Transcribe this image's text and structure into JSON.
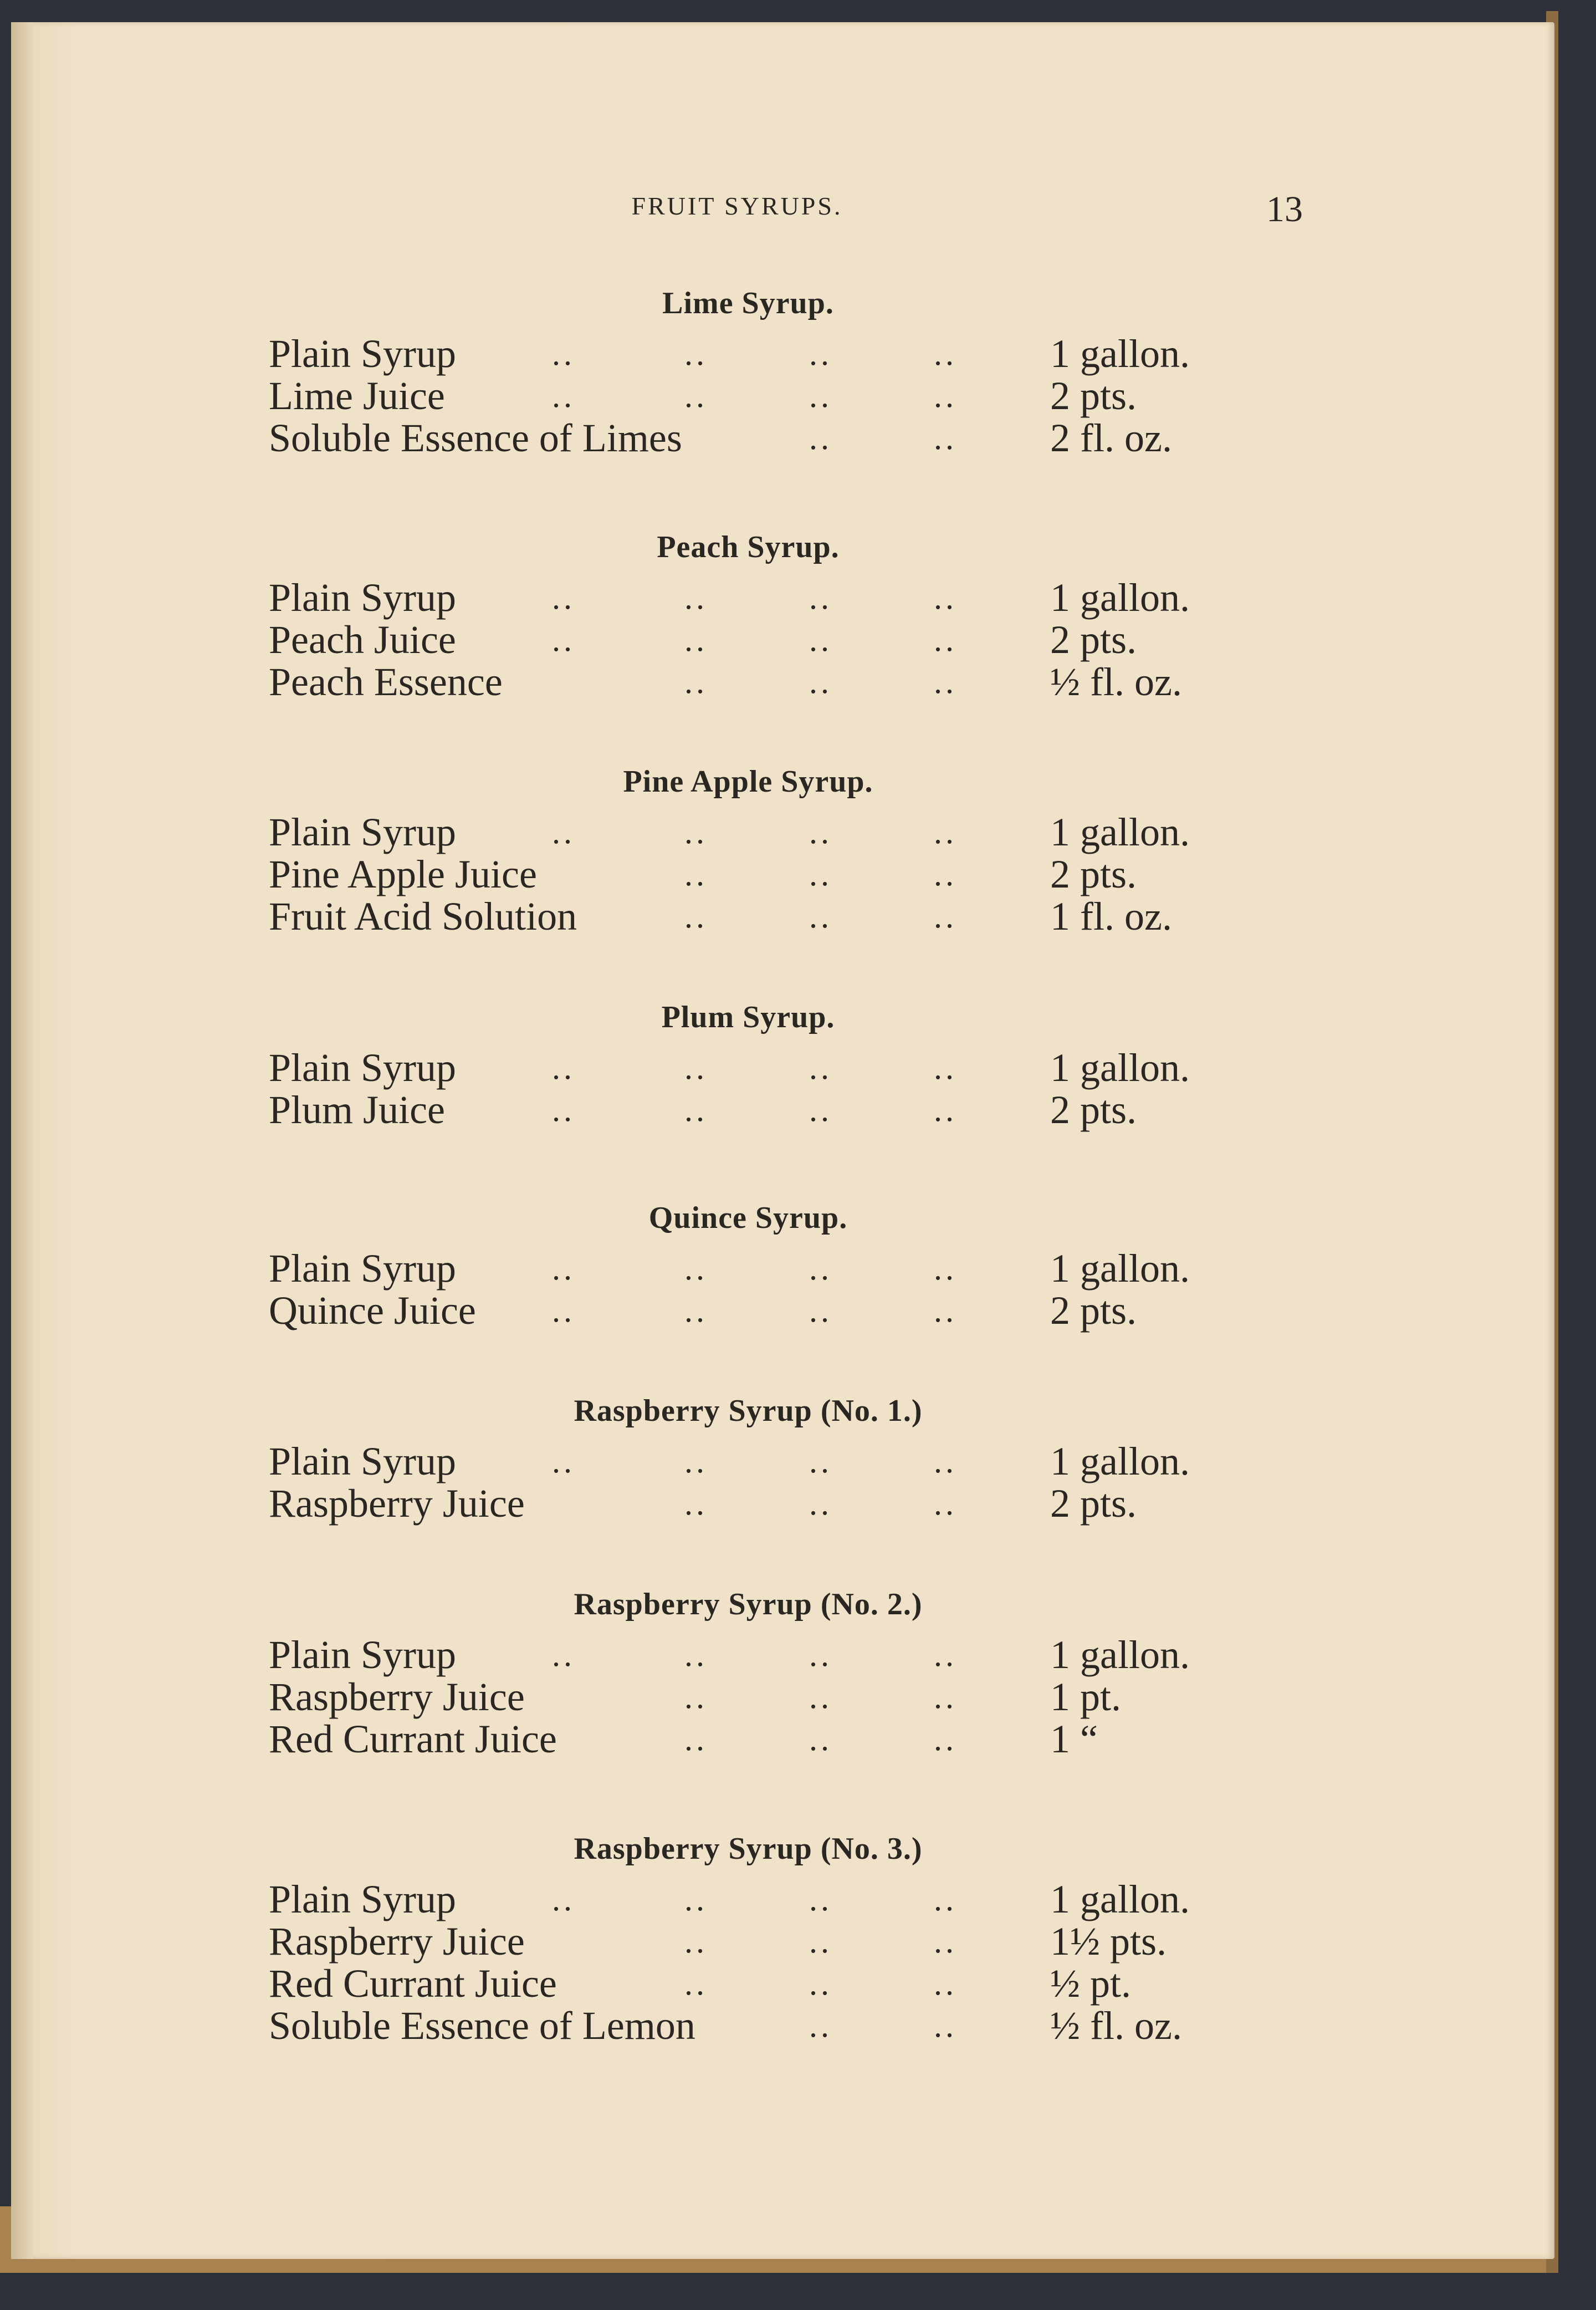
{
  "running_head": "FRUIT SYRUPS.",
  "page_number": "13",
  "leader": "..",
  "sections": [
    {
      "title": "Lime Syrup.",
      "rows": [
        {
          "item": "Plain Syrup",
          "leaders": 4,
          "amount": "1 gallon."
        },
        {
          "item": "Lime Juice",
          "leaders": 4,
          "amount": "2 pts."
        },
        {
          "item": "Soluble Essence of Limes",
          "leaders": 2,
          "amount": "2 fl. oz."
        }
      ]
    },
    {
      "title": "Peach Syrup.",
      "rows": [
        {
          "item": "Plain Syrup",
          "leaders": 4,
          "amount": "1 gallon."
        },
        {
          "item": "Peach Juice",
          "leaders": 4,
          "amount": "2 pts."
        },
        {
          "item": "Peach Essence",
          "leaders": 3,
          "amount": "½ fl. oz."
        }
      ]
    },
    {
      "title": "Pine Apple Syrup.",
      "rows": [
        {
          "item": "Plain Syrup",
          "leaders": 4,
          "amount": "1 gallon."
        },
        {
          "item": "Pine Apple Juice",
          "leaders": 3,
          "amount": "2 pts."
        },
        {
          "item": "Fruit Acid Solution",
          "leaders": 3,
          "amount": "1 fl. oz."
        }
      ]
    },
    {
      "title": "Plum Syrup.",
      "rows": [
        {
          "item": "Plain Syrup",
          "leaders": 4,
          "amount": "1 gallon."
        },
        {
          "item": "Plum Juice",
          "leaders": 4,
          "amount": "2 pts."
        }
      ]
    },
    {
      "title": "Quince Syrup.",
      "rows": [
        {
          "item": "Plain Syrup",
          "leaders": 4,
          "amount": "1 gallon."
        },
        {
          "item": "Quince Juice",
          "leaders": 4,
          "amount": "2 pts."
        }
      ]
    },
    {
      "title": "Raspberry Syrup (No. 1.)",
      "rows": [
        {
          "item": "Plain Syrup",
          "leaders": 4,
          "amount": "1 gallon."
        },
        {
          "item": "Raspberry Juice",
          "leaders": 3,
          "amount": "2 pts."
        }
      ]
    },
    {
      "title": "Raspberry Syrup (No. 2.)",
      "rows": [
        {
          "item": "Plain Syrup",
          "leaders": 4,
          "amount": "1 gallon."
        },
        {
          "item": "Raspberry Juice",
          "leaders": 3,
          "amount": "1 pt."
        },
        {
          "item": "Red Currant Juice",
          "leaders": 3,
          "amount": "1  “"
        }
      ]
    },
    {
      "title": "Raspberry Syrup (No. 3.)",
      "rows": [
        {
          "item": "Plain Syrup",
          "leaders": 4,
          "amount": "1 gallon."
        },
        {
          "item": "Raspberry Juice",
          "leaders": 3,
          "amount": "1½ pts."
        },
        {
          "item": "Red Currant Juice",
          "leaders": 3,
          "amount": "½ pt."
        },
        {
          "item": "Soluble Essence of Lemon",
          "leaders": 2,
          "amount": "½ fl. oz."
        }
      ]
    }
  ]
}
